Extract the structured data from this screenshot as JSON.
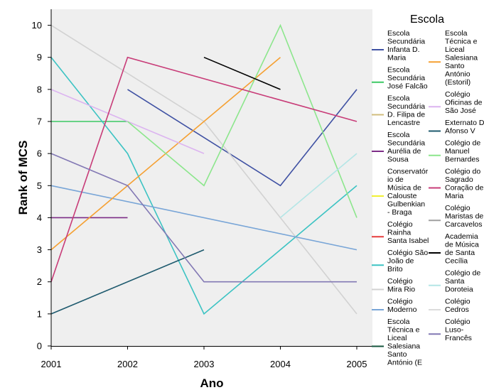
{
  "chart_data": {
    "type": "line",
    "xlabel": "Ano",
    "ylabel": "Rank of MCS",
    "x_ticks": [
      "2001",
      "2002",
      "2003",
      "2004",
      "2005"
    ],
    "y_ticks": [
      "0",
      "1",
      "2",
      "3",
      "4",
      "5",
      "6",
      "7",
      "8",
      "9",
      "10"
    ],
    "xlim": [
      2001,
      2005
    ],
    "ylim": [
      0,
      10.5
    ],
    "grid": false,
    "plot_background": "#efefef",
    "legend_title": "Escola",
    "legend_placement": "right",
    "series": [
      {
        "name": "Escola Secundária Infanta D. Maria",
        "color": "#3f51a3",
        "points": [
          [
            2002,
            8
          ],
          [
            2004,
            5
          ],
          [
            2005,
            8
          ]
        ]
      },
      {
        "name": "Escola Secundária José Falcão",
        "color": "#3cc864",
        "points": [
          [
            2001,
            7
          ],
          [
            2002,
            7
          ]
        ]
      },
      {
        "name": "Escola Secundária D. Filipa de Lencastre",
        "color": "#d2be7d",
        "points": []
      },
      {
        "name": "Escola Secundária Aurélia de Sousa",
        "color": "#7d2d87",
        "points": [
          [
            2001,
            4
          ],
          [
            2002,
            4
          ]
        ]
      },
      {
        "name": "Conservatório de Música de Calouste Gulbenkian - Braga",
        "color": "#f0f032",
        "points": []
      },
      {
        "name": "Colégio Rainha Santa Isabel",
        "color": "#e63c3c",
        "points": []
      },
      {
        "name": "Colégio São João de Brito",
        "color": "#3cc3c3",
        "points": [
          [
            2001,
            9
          ],
          [
            2002,
            6
          ],
          [
            2003,
            1
          ],
          [
            2005,
            5
          ]
        ]
      },
      {
        "name": "Colégio Mira Rio",
        "color": "#d2d2d2",
        "points": [
          [
            2001,
            10
          ],
          [
            2003,
            7
          ],
          [
            2005,
            1
          ]
        ]
      },
      {
        "name": "Colégio Moderno",
        "color": "#78a5d7",
        "points": [
          [
            2001,
            5
          ],
          [
            2005,
            3
          ]
        ]
      },
      {
        "name": "Escola Técnica e Liceal Salesiana Santo António (E",
        "color": "#14553c",
        "points": []
      },
      {
        "name": "Escola Técnica e Liceal Salesiana Santo António (Estoril)",
        "color": "#f5a032",
        "points": [
          [
            2001,
            3
          ],
          [
            2004,
            9
          ]
        ]
      },
      {
        "name": "Colégio Oficinas de São José",
        "color": "#dcb4f0",
        "points": [
          [
            2001,
            8
          ],
          [
            2003,
            6
          ]
        ]
      },
      {
        "name": "Externato D. Afonso V",
        "color": "#1e5a6e",
        "points": [
          [
            2001,
            1
          ],
          [
            2003,
            3
          ]
        ]
      },
      {
        "name": "Colégio de Manuel Bernardes",
        "color": "#8ce68c",
        "points": [
          [
            2002,
            7
          ],
          [
            2003,
            5
          ],
          [
            2004,
            10
          ],
          [
            2005,
            4
          ]
        ]
      },
      {
        "name": "Colégio do Sagrado Coração de Maria",
        "color": "#c83c78",
        "points": [
          [
            2001,
            2
          ],
          [
            2002,
            9
          ],
          [
            2005,
            7
          ]
        ]
      },
      {
        "name": "Colégio Maristas de Carcavelos",
        "color": "#a0a0a0",
        "points": []
      },
      {
        "name": "Academia de Música de Santa Cecília",
        "color": "#000000",
        "points": [
          [
            2003,
            9
          ],
          [
            2004,
            8
          ]
        ]
      },
      {
        "name": "Colégio de Santa Doroteia",
        "color": "#b4e6e6",
        "points": [
          [
            2004,
            4
          ],
          [
            2005,
            6
          ]
        ]
      },
      {
        "name": "Colégio Cedros",
        "color": "#dcdcdc",
        "points": []
      },
      {
        "name": "Colégio Luso-Francês",
        "color": "#8278b4",
        "points": [
          [
            2001,
            6
          ],
          [
            2002,
            5
          ],
          [
            2003,
            2
          ],
          [
            2005,
            2
          ]
        ]
      }
    ],
    "legend_entries": [
      {
        "lines": [
          "Escola",
          "Secundária",
          "Infanta D.",
          "Maria"
        ],
        "color": "#3f51a3"
      },
      {
        "lines": [
          "Escola",
          "Secundária",
          "José Falcão"
        ],
        "color": "#3cc864"
      },
      {
        "lines": [
          "Escola",
          "Secundária",
          "D. Filipa de",
          "Lencastre"
        ],
        "color": "#d2be7d"
      },
      {
        "lines": [
          "Escola",
          "Secundária",
          "Aurélia de",
          "Sousa"
        ],
        "color": "#7d2d87"
      },
      {
        "lines": [
          "Conservatór",
          "io de",
          "Música de",
          "Calouste",
          "Gulbenkian",
          "- Braga"
        ],
        "color": "#f0f032"
      },
      {
        "lines": [
          "Colégio",
          "Rainha",
          "Santa Isabel"
        ],
        "color": "#e63c3c"
      },
      {
        "lines": [
          "Colégio São",
          "João de",
          "Brito"
        ],
        "color": "#3cc3c3"
      },
      {
        "lines": [
          "Colégio",
          "Mira Rio"
        ],
        "color": "#d2d2d2"
      },
      {
        "lines": [
          "Colégio",
          "Moderno"
        ],
        "color": "#78a5d7"
      },
      {
        "lines": [
          "Escola",
          "Técnica e",
          "Liceal",
          "Salesiana",
          "Santo",
          "António (E"
        ],
        "color": "#14553c"
      },
      {
        "lines": [
          "Escola",
          "Técnica e",
          "Liceal",
          "Salesiana",
          "Santo",
          "António",
          "(Estoril)"
        ],
        "color": "#f5a032"
      },
      {
        "lines": [
          "Colégio",
          "Oficinas de",
          "São José"
        ],
        "color": "#dcb4f0"
      },
      {
        "lines": [
          "Externato D.",
          "Afonso V"
        ],
        "color": "#1e5a6e"
      },
      {
        "lines": [
          "Colégio de",
          "Manuel",
          "Bernardes"
        ],
        "color": "#8ce68c"
      },
      {
        "lines": [
          "Colégio do",
          "Sagrado",
          "Coração de",
          "Maria"
        ],
        "color": "#c83c78"
      },
      {
        "lines": [
          "Colégio",
          "Maristas de",
          "Carcavelos"
        ],
        "color": "#a0a0a0"
      },
      {
        "lines": [
          "Academia",
          "de Música",
          "de Santa",
          "Cecília"
        ],
        "color": "#000000"
      },
      {
        "lines": [
          "Colégio de",
          "Santa",
          "Doroteia"
        ],
        "color": "#b4e6e6"
      },
      {
        "lines": [
          "Colégio",
          "Cedros"
        ],
        "color": "#dcdcdc"
      },
      {
        "lines": [
          "Colégio",
          "Luso-",
          "Francês"
        ],
        "color": "#8278b4"
      }
    ]
  }
}
